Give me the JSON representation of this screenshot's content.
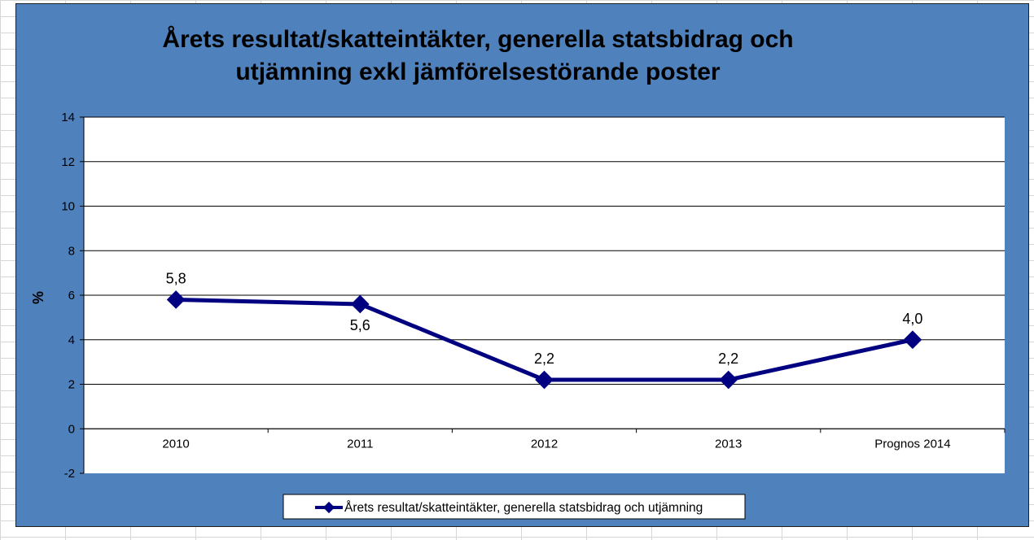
{
  "chart_data": {
    "type": "line",
    "title_lines": [
      "Årets resultat/skatteintäkter, generella statsbidrag och",
      "utjämning exkl jämförelsestörande poster"
    ],
    "ylabel": "%",
    "xlabel": "",
    "categories": [
      "2010",
      "2011",
      "2012",
      "2013",
      "Prognos 2014"
    ],
    "series": [
      {
        "name": "Årets resultat/skatteintäkter, generella statsbidrag och utjämning",
        "values": [
          5.8,
          5.6,
          2.2,
          2.2,
          4.0
        ],
        "labels": [
          "5,8",
          "5,6",
          "2,2",
          "2,2",
          "4,0"
        ],
        "label_positions": [
          "above",
          "below",
          "above",
          "above",
          "above"
        ],
        "color": "#000080"
      }
    ],
    "ylim": [
      -2,
      14
    ],
    "yticks": [
      -2,
      0,
      2,
      4,
      6,
      8,
      10,
      12,
      14
    ],
    "grid": true,
    "legend": "bottom",
    "colors": {
      "chart_background": "#4f81bd",
      "plot_background": "#ffffff",
      "gridline": "#000000"
    }
  }
}
